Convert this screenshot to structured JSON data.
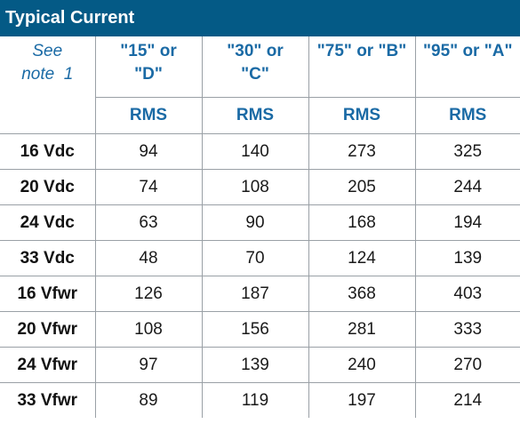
{
  "title": "Typical Current",
  "note_lines": [
    "See",
    "note  1"
  ],
  "columns": [
    {
      "line1": "\"15\" or",
      "line2": "\"D\""
    },
    {
      "line1": "\"30\" or",
      "line2": "\"C\""
    },
    {
      "line1": "\"75\" or \"B\"",
      "line2": ""
    },
    {
      "line1": "\"95\" or \"A\"",
      "line2": ""
    }
  ],
  "subheader": [
    "RMS",
    "RMS",
    "RMS",
    "RMS"
  ],
  "rows": [
    {
      "label": "16 Vdc",
      "values": [
        "94",
        "140",
        "273",
        "325"
      ]
    },
    {
      "label": "20 Vdc",
      "values": [
        "74",
        "108",
        "205",
        "244"
      ]
    },
    {
      "label": "24 Vdc",
      "values": [
        "63",
        "90",
        "168",
        "194"
      ]
    },
    {
      "label": "33 Vdc",
      "values": [
        "48",
        "70",
        "124",
        "139"
      ]
    },
    {
      "label": "16 Vfwr",
      "values": [
        "126",
        "187",
        "368",
        "403"
      ]
    },
    {
      "label": "20 Vfwr",
      "values": [
        "108",
        "156",
        "281",
        "333"
      ]
    },
    {
      "label": "24 Vfwr",
      "values": [
        "97",
        "139",
        "240",
        "270"
      ]
    },
    {
      "label": "33 Vfwr",
      "values": [
        "89",
        "119",
        "197",
        "214"
      ]
    }
  ]
}
